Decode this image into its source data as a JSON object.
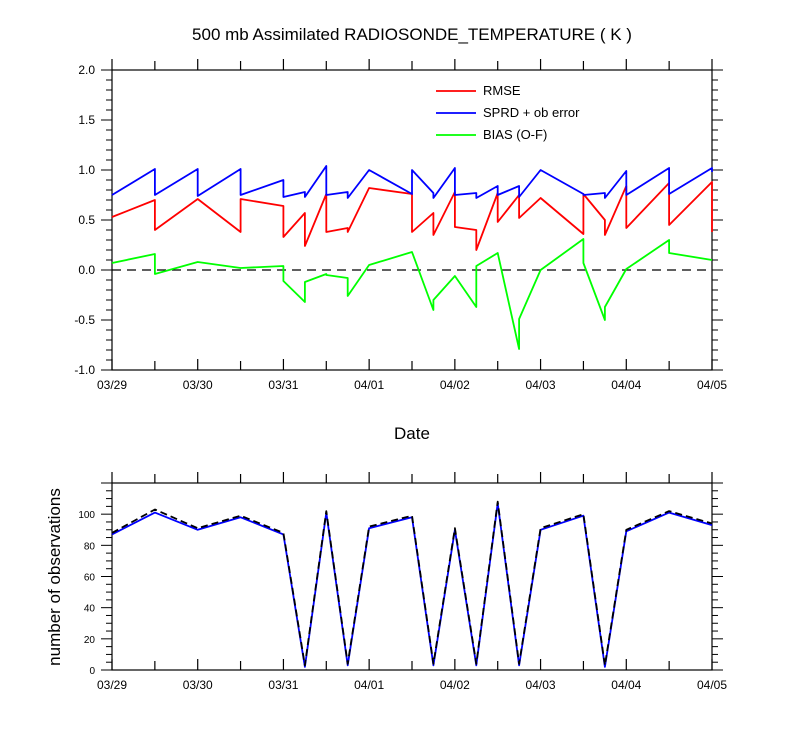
{
  "chart_data": [
    {
      "type": "line",
      "title": "500 mb Assimilated RADIOSONDE_TEMPERATURE ( K )",
      "xlabel": "Date",
      "ylabel": "",
      "ylim": [
        -1.0,
        2.0
      ],
      "yticks": [
        "-1.0",
        "-0.5",
        "0.0",
        "0.5",
        "1.0",
        "1.5",
        "2.0"
      ],
      "xlim": [
        0,
        7
      ],
      "xtick_labels": [
        "03/29",
        "03/30",
        "03/31",
        "04/01",
        "04/02",
        "04/03",
        "04/04",
        "04/05"
      ],
      "legend_position": "top-right",
      "zero_line": "dashed",
      "series": [
        {
          "name": "RMSE",
          "color": "#ff0000",
          "x": [
            0.0,
            0.5,
            0.5,
            1.0,
            1.5,
            1.5,
            2.0,
            2.0,
            2.25,
            2.25,
            2.5,
            2.5,
            2.75,
            2.75,
            3.0,
            3.5,
            3.5,
            3.75,
            3.75,
            4.0,
            4.0,
            4.25,
            4.25,
            4.5,
            4.5,
            4.75,
            4.75,
            5.0,
            5.5,
            5.5,
            5.75,
            5.75,
            6.0,
            6.0,
            6.5,
            6.5,
            7.0,
            7.0
          ],
          "y": [
            0.53,
            0.7,
            0.4,
            0.71,
            0.38,
            0.71,
            0.64,
            0.33,
            0.57,
            0.24,
            0.76,
            0.38,
            0.42,
            0.38,
            0.82,
            0.76,
            0.38,
            0.57,
            0.35,
            0.78,
            0.43,
            0.4,
            0.2,
            0.77,
            0.48,
            0.75,
            0.52,
            0.72,
            0.36,
            0.76,
            0.5,
            0.35,
            0.84,
            0.42,
            0.87,
            0.45,
            0.88,
            0.38
          ]
        },
        {
          "name": "SPRD + ob error",
          "color": "#0000ff",
          "x": [
            0.0,
            0.5,
            0.5,
            1.0,
            1.0,
            1.5,
            1.5,
            2.0,
            2.0,
            2.25,
            2.25,
            2.5,
            2.5,
            2.75,
            2.75,
            3.0,
            3.5,
            3.5,
            3.75,
            3.75,
            4.0,
            4.0,
            4.25,
            4.25,
            4.5,
            4.5,
            4.75,
            4.75,
            5.0,
            5.5,
            5.5,
            5.75,
            5.75,
            6.0,
            6.0,
            6.5,
            6.5,
            7.0,
            7.0
          ],
          "y": [
            0.75,
            1.01,
            0.75,
            1.01,
            0.74,
            1.01,
            0.75,
            0.9,
            0.73,
            0.78,
            0.73,
            1.04,
            0.75,
            0.78,
            0.72,
            1.0,
            0.76,
            1.0,
            0.77,
            0.72,
            1.02,
            0.75,
            0.77,
            0.72,
            0.84,
            0.75,
            0.84,
            0.73,
            1.0,
            0.76,
            0.75,
            0.77,
            0.72,
            0.99,
            0.75,
            1.02,
            0.76,
            1.02,
            0.98
          ]
        },
        {
          "name": "BIAS (O-F)",
          "color": "#00ff00",
          "x": [
            0.0,
            0.5,
            0.5,
            1.0,
            1.5,
            2.0,
            2.0,
            2.25,
            2.25,
            2.5,
            2.5,
            2.75,
            2.75,
            3.0,
            3.5,
            3.75,
            3.75,
            4.0,
            4.25,
            4.25,
            4.5,
            4.75,
            4.75,
            5.0,
            5.5,
            5.5,
            5.75,
            5.75,
            6.0,
            6.5,
            6.5,
            7.0
          ],
          "y": [
            0.07,
            0.16,
            -0.04,
            0.08,
            0.02,
            0.04,
            -0.11,
            -0.32,
            -0.12,
            -0.04,
            -0.05,
            -0.08,
            -0.26,
            0.05,
            0.18,
            -0.4,
            -0.3,
            -0.06,
            -0.37,
            0.04,
            0.17,
            -0.79,
            -0.49,
            0.0,
            0.31,
            0.07,
            -0.5,
            -0.37,
            0.01,
            0.3,
            0.17,
            0.1
          ]
        }
      ]
    },
    {
      "type": "line",
      "title": "",
      "xlabel": "",
      "ylabel": "number of observations",
      "ylim": [
        0,
        120
      ],
      "yticks": [
        "0",
        "20",
        "40",
        "60",
        "80",
        "100"
      ],
      "xlim": [
        0,
        7
      ],
      "xtick_labels": [
        "03/29",
        "03/30",
        "03/31",
        "04/01",
        "04/02",
        "04/03",
        "04/04",
        "04/05"
      ],
      "series": [
        {
          "name": "",
          "color": "#0000ff",
          "style": "solid",
          "x": [
            0.0,
            0.5,
            1.0,
            1.5,
            2.0,
            2.25,
            2.5,
            2.75,
            3.0,
            3.5,
            3.75,
            4.0,
            4.25,
            4.5,
            4.75,
            5.0,
            5.5,
            5.75,
            6.0,
            6.5,
            7.0
          ],
          "y": [
            87,
            101,
            90,
            98,
            87,
            2,
            101,
            3,
            91,
            98,
            3,
            90,
            3,
            107,
            3,
            90,
            99,
            2,
            89,
            101,
            93
          ]
        },
        {
          "name": "",
          "color": "#000000",
          "style": "dashed",
          "x": [
            0.0,
            0.5,
            1.0,
            1.5,
            2.0,
            2.25,
            2.5,
            2.75,
            3.0,
            3.5,
            3.75,
            4.0,
            4.25,
            4.5,
            4.75,
            5.0,
            5.5,
            5.75,
            6.0,
            6.5,
            7.0
          ],
          "y": [
            88,
            103,
            91,
            99,
            88,
            3,
            102,
            4,
            92,
            99,
            4,
            91,
            4,
            108,
            4,
            91,
            100,
            3,
            90,
            102,
            94
          ]
        }
      ]
    }
  ]
}
